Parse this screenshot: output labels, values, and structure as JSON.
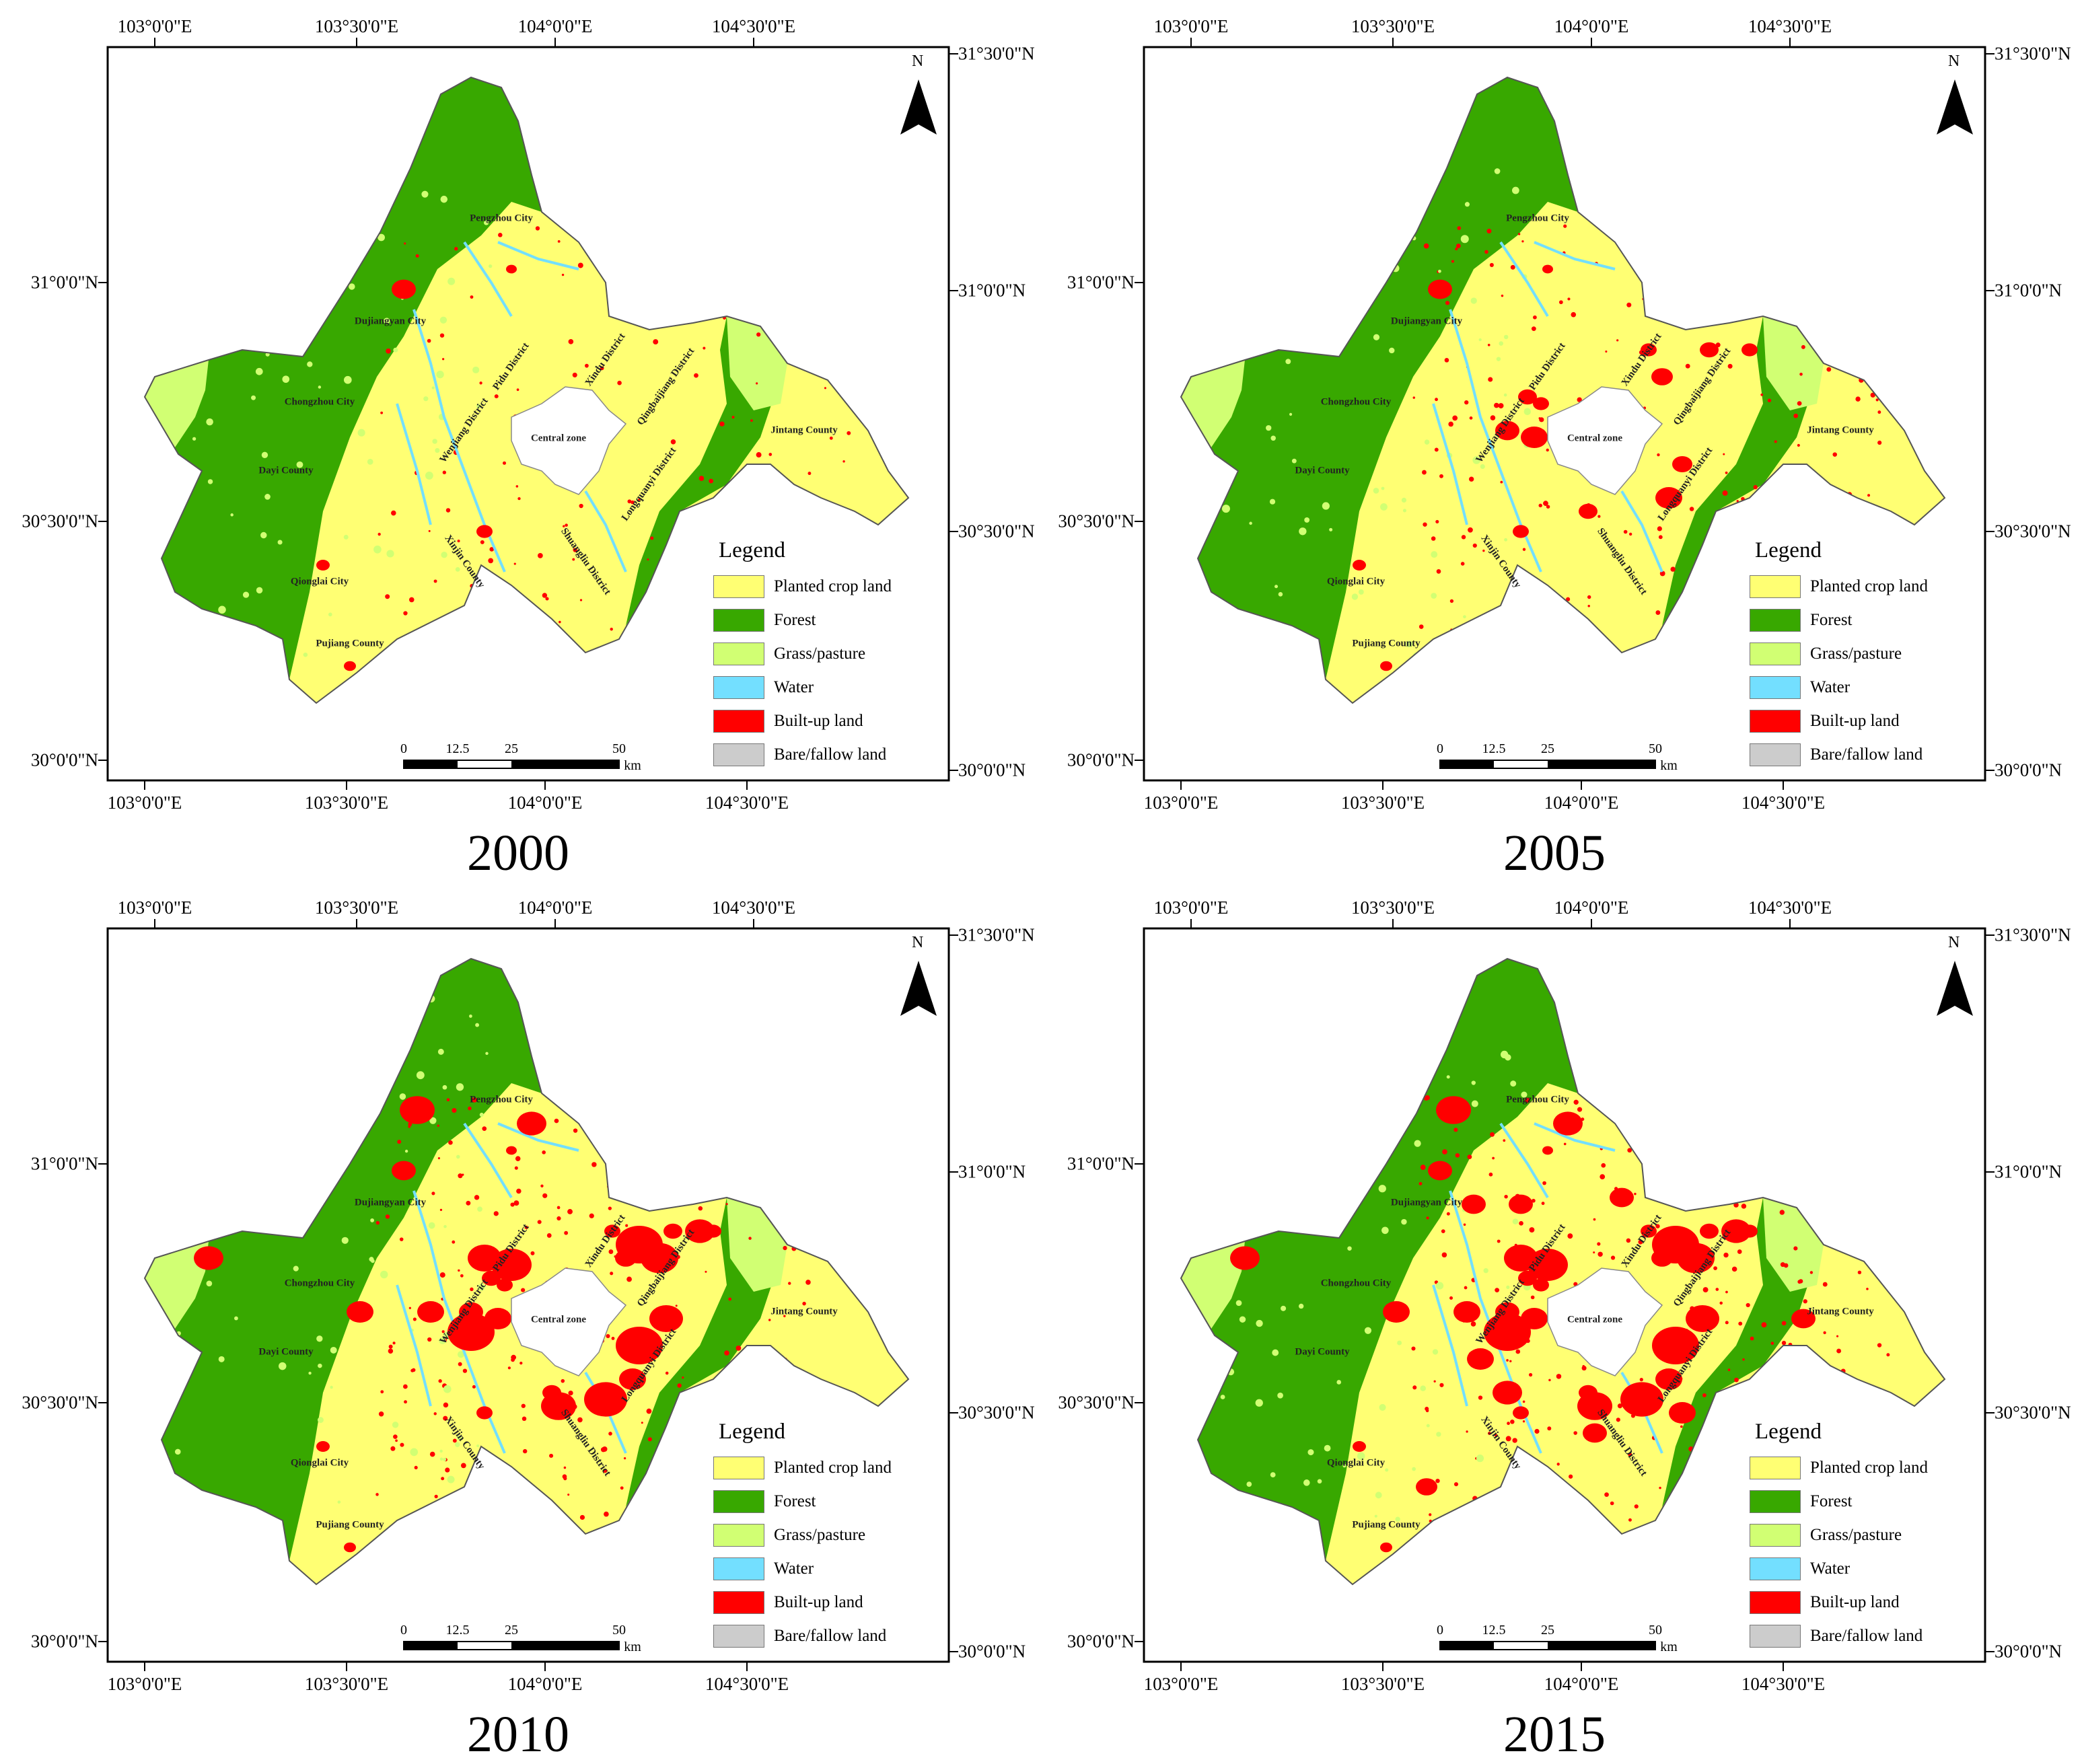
{
  "panels": [
    {
      "year": "2000",
      "builtup_level": 0
    },
    {
      "year": "2005",
      "builtup_level": 1
    },
    {
      "year": "2010",
      "builtup_level": 2
    },
    {
      "year": "2015",
      "builtup_level": 3
    }
  ],
  "axes": {
    "lon_ticks": [
      "103°0'0\"E",
      "103°30'0\"E",
      "104°0'0\"E",
      "104°30'0\"E"
    ],
    "lat_ticks_left": [
      "31°0'0\"N",
      "30°30'0\"N",
      "30°0'0\"N"
    ],
    "lat_ticks_right": [
      "31°30'0\"N",
      "31°0'0\"N",
      "30°30'0\"N",
      "30°0'0\"N"
    ]
  },
  "north_label": "N",
  "legend": {
    "title": "Legend",
    "items": [
      {
        "label": "Planted crop land",
        "color": "#ffff73"
      },
      {
        "label": "Forest",
        "color": "#38a800"
      },
      {
        "label": "Grass/pasture",
        "color": "#d1ff73"
      },
      {
        "label": "Water",
        "color": "#73dfff"
      },
      {
        "label": "Built-up land",
        "color": "#ff0000"
      },
      {
        "label": "Bare/fallow land",
        "color": "#cccccc"
      }
    ]
  },
  "scale_bar": {
    "labels": [
      "0",
      "12.5",
      "25",
      "50"
    ],
    "unit": "km"
  },
  "places": [
    "Pengzhou City",
    "Dujiangyan City",
    "Pidu District",
    "Xindu District",
    "Qingbaijiang District",
    "Chongzhou City",
    "Wenjiang District",
    "Central zone",
    "Jintang County",
    "Dayi County",
    "Longquanyi District",
    "Shuangliu District",
    "Xinjin County",
    "Qionglai City",
    "Pujiang County"
  ]
}
